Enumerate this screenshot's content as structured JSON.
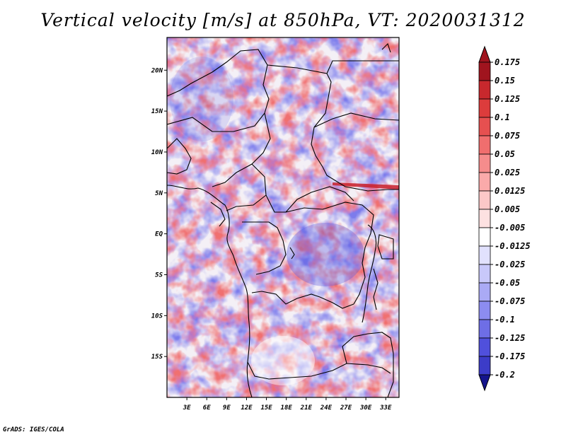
{
  "chart_data": {
    "type": "heatmap",
    "title": "Vertical velocity [m/s] at 850hPa, VT: 2020031312",
    "variable": "Vertical velocity",
    "units": "m/s",
    "level": "850hPa",
    "valid_time": "2020031312",
    "xlabel": "",
    "ylabel": "",
    "x_range": [
      0,
      35
    ],
    "y_range": [
      -20,
      24
    ],
    "x_ticks": [
      {
        "value": 3,
        "label": "3E"
      },
      {
        "value": 6,
        "label": "6E"
      },
      {
        "value": 9,
        "label": "9E"
      },
      {
        "value": 12,
        "label": "12E"
      },
      {
        "value": 15,
        "label": "15E"
      },
      {
        "value": 18,
        "label": "18E"
      },
      {
        "value": 21,
        "label": "21E"
      },
      {
        "value": 24,
        "label": "24E"
      },
      {
        "value": 27,
        "label": "27E"
      },
      {
        "value": 30,
        "label": "30E"
      },
      {
        "value": 33,
        "label": "33E"
      }
    ],
    "y_ticks": [
      {
        "value": 20,
        "label": "20N"
      },
      {
        "value": 15,
        "label": "15N"
      },
      {
        "value": 10,
        "label": "10N"
      },
      {
        "value": 5,
        "label": "5N"
      },
      {
        "value": 0,
        "label": "EQ"
      },
      {
        "value": -5,
        "label": "5S"
      },
      {
        "value": -10,
        "label": "10S"
      },
      {
        "value": -15,
        "label": "15S"
      }
    ],
    "colorbar": {
      "levels": [
        {
          "value": 0.175,
          "label": "0.175",
          "color": "#b4141e"
        },
        {
          "value": 0.15,
          "label": "0.15",
          "color": "#c8282d"
        },
        {
          "value": 0.125,
          "label": "0.125",
          "color": "#dc3c3c"
        },
        {
          "value": 0.1,
          "label": "0.1",
          "color": "#e65050"
        },
        {
          "value": 0.075,
          "label": "0.075",
          "color": "#f06e6e"
        },
        {
          "value": 0.05,
          "label": "0.05",
          "color": "#f58c8c"
        },
        {
          "value": 0.025,
          "label": "0.025",
          "color": "#faaaaa"
        },
        {
          "value": 0.0125,
          "label": "0.0125",
          "color": "#fcc8c8"
        },
        {
          "value": 0.005,
          "label": "0.005",
          "color": "#fde1e1"
        },
        {
          "value": -0.005,
          "label": "-0.005",
          "color": "#ffffff"
        },
        {
          "value": -0.0125,
          "label": "-0.0125",
          "color": "#e1e1fd"
        },
        {
          "value": -0.025,
          "label": "-0.025",
          "color": "#c8c8fa"
        },
        {
          "value": -0.05,
          "label": "-0.05",
          "color": "#aaaaf5"
        },
        {
          "value": -0.075,
          "label": "-0.075",
          "color": "#8c8cf0"
        },
        {
          "value": -0.1,
          "label": "-0.1",
          "color": "#6e6ee6"
        },
        {
          "value": -0.125,
          "label": "-0.125",
          "color": "#5050dc"
        },
        {
          "value": -0.175,
          "label": "-0.175",
          "color": "#3c3cc8"
        },
        {
          "value": -0.2,
          "label": "-0.2",
          "color": "#2828b4"
        }
      ],
      "min_arrow_color": "#14148c",
      "max_arrow_color": "#a0141e"
    }
  },
  "credit": "GrADS: IGES/COLA"
}
